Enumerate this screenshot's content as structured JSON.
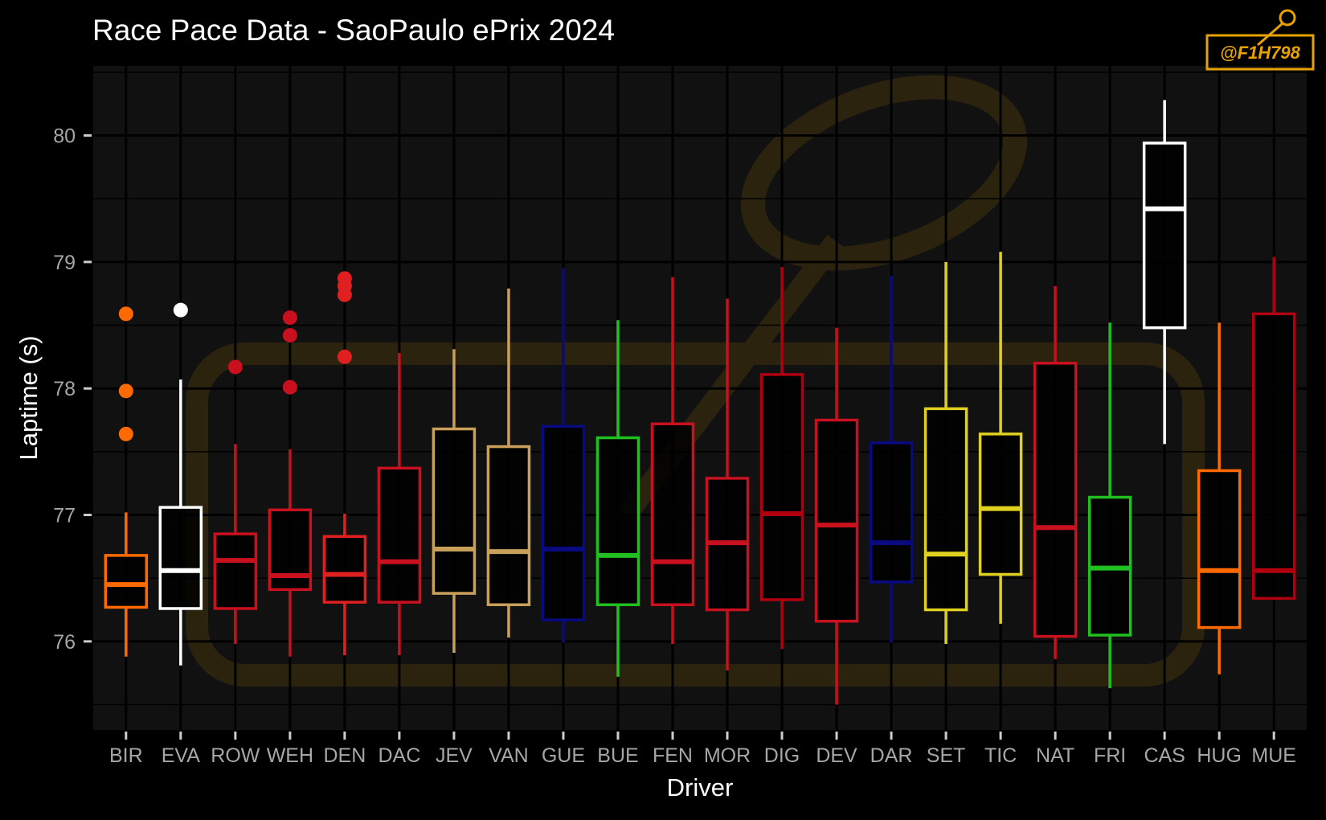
{
  "chart_data": {
    "type": "box",
    "title": "Race Pace Data - SaoPaulo ePrix 2024",
    "xlabel": "Driver",
    "ylabel": "Laptime (s)",
    "ylim": [
      75.3,
      80.55
    ],
    "yticks": [
      76,
      77,
      78,
      79,
      80
    ],
    "grid": true,
    "legend": "none",
    "watermark": "@F1H798",
    "colors": {
      "background": "#000000",
      "panel": "#111111",
      "grid": "#000000"
    },
    "series": [
      {
        "driver": "BIR",
        "color": "#ff6a00",
        "min": 75.88,
        "q1": 76.27,
        "median": 76.45,
        "q3": 76.68,
        "max": 77.02,
        "outliers": [
          77.64,
          77.98,
          78.59
        ]
      },
      {
        "driver": "EVA",
        "color": "#ffffff",
        "min": 75.81,
        "q1": 76.26,
        "median": 76.56,
        "q3": 77.06,
        "max": 78.07,
        "outliers": [
          78.62
        ]
      },
      {
        "driver": "ROW",
        "color": "#c8101e",
        "min": 75.98,
        "q1": 76.26,
        "median": 76.64,
        "q3": 76.85,
        "max": 77.56,
        "outliers": [
          78.17
        ]
      },
      {
        "driver": "WEH",
        "color": "#c8101e",
        "min": 75.88,
        "q1": 76.41,
        "median": 76.52,
        "q3": 77.04,
        "max": 77.52,
        "outliers": [
          78.01,
          78.42,
          78.56
        ]
      },
      {
        "driver": "DEN",
        "color": "#e02020",
        "min": 75.89,
        "q1": 76.31,
        "median": 76.53,
        "q3": 76.83,
        "max": 77.01,
        "outliers": [
          78.25,
          78.74,
          78.81,
          78.87
        ]
      },
      {
        "driver": "DAC",
        "color": "#c8101e",
        "min": 75.89,
        "q1": 76.31,
        "median": 76.63,
        "q3": 77.37,
        "max": 78.28,
        "outliers": []
      },
      {
        "driver": "JEV",
        "color": "#c9a05a",
        "min": 75.91,
        "q1": 76.38,
        "median": 76.73,
        "q3": 77.68,
        "max": 78.31,
        "outliers": []
      },
      {
        "driver": "VAN",
        "color": "#c9a05a",
        "min": 76.03,
        "q1": 76.29,
        "median": 76.71,
        "q3": 77.54,
        "max": 78.79,
        "outliers": []
      },
      {
        "driver": "GUE",
        "color": "#0a0a80",
        "min": 75.99,
        "q1": 76.17,
        "median": 76.73,
        "q3": 77.7,
        "max": 78.95,
        "outliers": []
      },
      {
        "driver": "BUE",
        "color": "#20c020",
        "min": 75.72,
        "q1": 76.29,
        "median": 76.68,
        "q3": 77.61,
        "max": 78.54,
        "outliers": []
      },
      {
        "driver": "FEN",
        "color": "#c8101e",
        "min": 75.98,
        "q1": 76.29,
        "median": 76.63,
        "q3": 77.72,
        "max": 78.88,
        "outliers": []
      },
      {
        "driver": "MOR",
        "color": "#c8101e",
        "min": 75.77,
        "q1": 76.25,
        "median": 76.78,
        "q3": 77.29,
        "max": 78.71,
        "outliers": []
      },
      {
        "driver": "DIG",
        "color": "#b0000f",
        "min": 75.94,
        "q1": 76.33,
        "median": 77.01,
        "q3": 78.11,
        "max": 78.96,
        "outliers": []
      },
      {
        "driver": "DEV",
        "color": "#c8101e",
        "min": 75.5,
        "q1": 76.16,
        "median": 76.92,
        "q3": 77.75,
        "max": 78.48,
        "outliers": []
      },
      {
        "driver": "DAR",
        "color": "#0a0a80",
        "min": 75.99,
        "q1": 76.47,
        "median": 76.78,
        "q3": 77.57,
        "max": 78.89,
        "outliers": []
      },
      {
        "driver": "SET",
        "color": "#e0d020",
        "min": 75.98,
        "q1": 76.25,
        "median": 76.69,
        "q3": 77.84,
        "max": 79.0,
        "outliers": []
      },
      {
        "driver": "TIC",
        "color": "#e0d020",
        "min": 76.14,
        "q1": 76.53,
        "median": 77.05,
        "q3": 77.64,
        "max": 79.08,
        "outliers": []
      },
      {
        "driver": "NAT",
        "color": "#c8101e",
        "min": 75.86,
        "q1": 76.04,
        "median": 76.9,
        "q3": 78.2,
        "max": 78.81,
        "outliers": []
      },
      {
        "driver": "FRI",
        "color": "#20c020",
        "min": 75.63,
        "q1": 76.05,
        "median": 76.58,
        "q3": 77.14,
        "max": 78.52,
        "outliers": []
      },
      {
        "driver": "CAS",
        "color": "#ffffff",
        "min": 77.56,
        "q1": 78.48,
        "median": 79.42,
        "q3": 79.94,
        "max": 80.28,
        "outliers": []
      },
      {
        "driver": "HUG",
        "color": "#ff6a00",
        "min": 75.74,
        "q1": 76.11,
        "median": 76.56,
        "q3": 77.35,
        "max": 78.52,
        "outliers": []
      },
      {
        "driver": "MUE",
        "color": "#b0000f",
        "min": 76.34,
        "q1": 76.34,
        "median": 76.56,
        "q3": 78.59,
        "max": 79.04,
        "outliers": []
      }
    ]
  }
}
